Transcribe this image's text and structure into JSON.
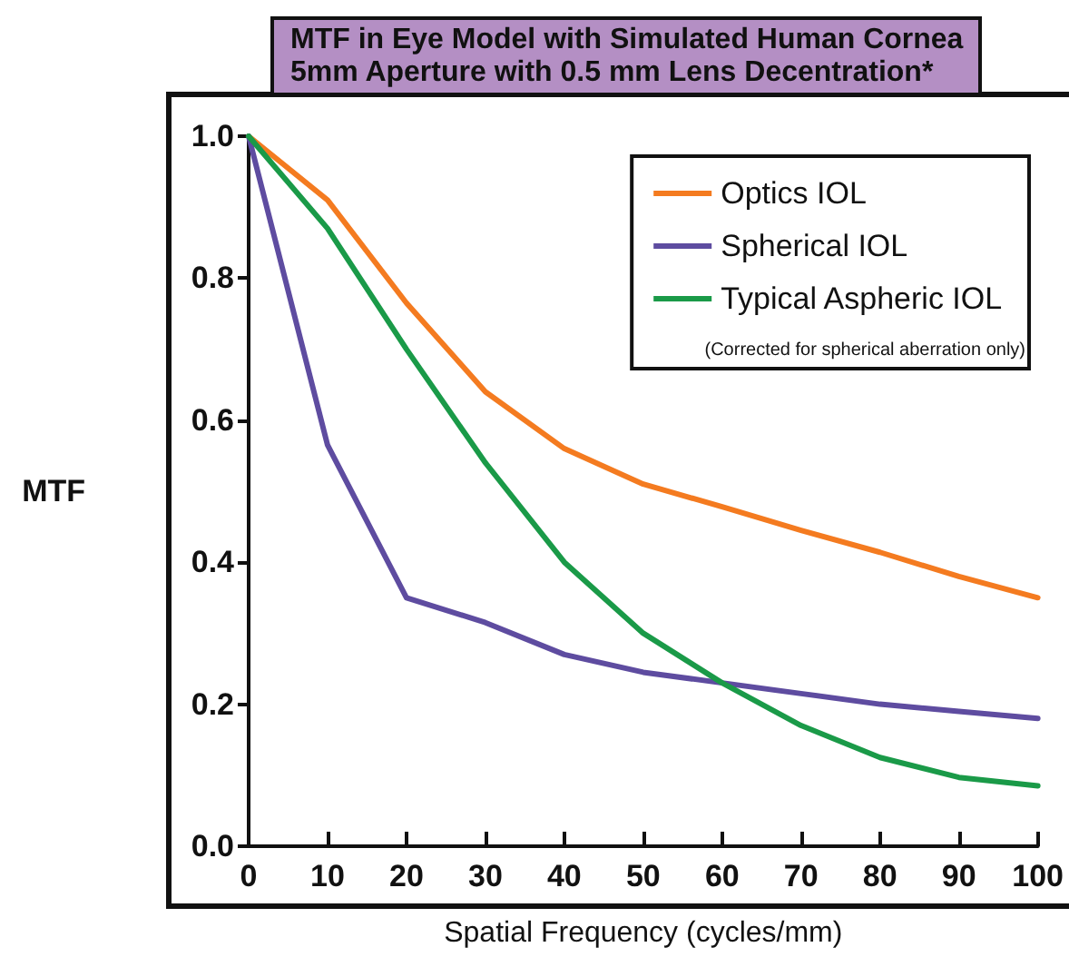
{
  "chart_data": {
    "type": "line",
    "title": "MTF in Eye Model with Simulated Human Cornea",
    "subtitle": "5mm Aperture with 0.5 mm Lens Decentration*",
    "xlabel": "Spatial Frequency (cycles/mm)",
    "ylabel": "MTF",
    "x": [
      0,
      10,
      20,
      30,
      40,
      50,
      60,
      70,
      80,
      90,
      100
    ],
    "series": [
      {
        "name": "Optics IOL",
        "color": "#f47b20",
        "values": [
          1.0,
          0.91,
          0.765,
          0.64,
          0.56,
          0.51,
          0.478,
          0.445,
          0.414,
          0.38,
          0.35
        ]
      },
      {
        "name": "Spherical IOL",
        "color": "#5e4ca0",
        "values": [
          1.0,
          0.565,
          0.35,
          0.315,
          0.27,
          0.245,
          0.23,
          0.215,
          0.2,
          0.19,
          0.18
        ]
      },
      {
        "name": "Typical Aspheric IOL",
        "color": "#1a9a48",
        "values": [
          1.0,
          0.87,
          0.7,
          0.54,
          0.4,
          0.3,
          0.23,
          0.17,
          0.125,
          0.097,
          0.085
        ]
      }
    ],
    "annotations": [
      "(Corrected for spherical aberration only)"
    ],
    "xlim": [
      0,
      100
    ],
    "xticks": [
      0,
      10,
      20,
      30,
      40,
      50,
      60,
      70,
      80,
      90,
      100
    ],
    "ylim": [
      0,
      1
    ],
    "yticks": [
      {
        "value": 0,
        "label": "0.0"
      },
      {
        "value": 0.2,
        "label": "0.2"
      },
      {
        "value": 0.4,
        "label": "0.4"
      },
      {
        "value": 0.6,
        "label": "0.6"
      },
      {
        "value": 0.8,
        "label": "0.8"
      },
      {
        "value": 1,
        "label": "1.0"
      }
    ],
    "grid": false,
    "legend": "top right",
    "marker": "none",
    "line_style": "solid"
  }
}
